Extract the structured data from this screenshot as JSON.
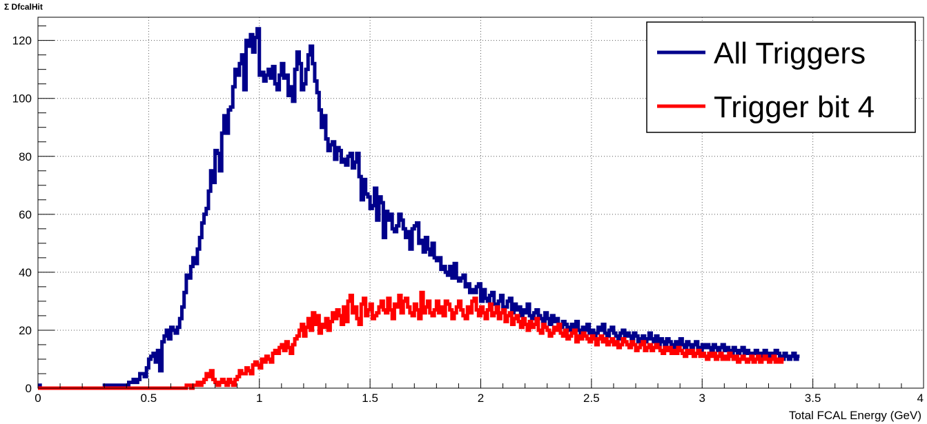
{
  "chart_data": {
    "type": "line",
    "style": "step-histogram",
    "title": "Σ DfcalHit",
    "xlabel": "Total FCAL Energy (GeV)",
    "ylabel": "",
    "xlim": [
      0,
      4
    ],
    "ylim": [
      0,
      128
    ],
    "x_ticks": [
      0,
      0.5,
      1,
      1.5,
      2,
      2.5,
      3,
      3.5,
      4
    ],
    "x_tick_labels": [
      "0",
      "0.5",
      "1",
      "1.5",
      "2",
      "2.5",
      "3",
      "3.5",
      "4"
    ],
    "y_ticks": [
      0,
      20,
      40,
      60,
      80,
      100,
      120
    ],
    "y_tick_labels": [
      "0",
      "20",
      "40",
      "60",
      "80",
      "100",
      "120"
    ],
    "grid": true,
    "legend_position": "top-right",
    "bin_width": 0.01,
    "series": [
      {
        "name": "All Triggers",
        "color": "#00008b",
        "values": [
          1,
          0,
          0,
          0,
          0,
          0,
          0,
          0,
          0,
          0,
          0,
          0,
          0,
          0,
          0,
          0,
          0,
          0,
          0,
          0,
          0,
          0,
          0,
          0,
          0,
          0,
          0,
          0,
          0,
          0,
          1,
          1,
          1,
          1,
          1,
          1,
          1,
          1,
          1,
          1,
          1,
          2,
          2,
          3,
          2,
          3,
          5,
          5,
          4,
          7,
          10,
          11,
          12,
          9,
          13,
          6,
          16,
          18,
          20,
          17,
          21,
          20,
          19,
          21,
          24,
          28,
          33,
          39,
          38,
          42,
          45,
          43,
          48,
          52,
          57,
          60,
          62,
          68,
          75,
          71,
          82,
          81,
          75,
          88,
          94,
          88,
          96,
          97,
          104,
          110,
          108,
          112,
          115,
          103,
          120,
          118,
          122,
          116,
          121,
          124,
          108,
          109,
          106,
          108,
          110,
          107,
          111,
          105,
          103,
          108,
          112,
          107,
          108,
          101,
          104,
          99,
          110,
          116,
          112,
          103,
          105,
          110,
          115,
          118,
          112,
          106,
          102,
          96,
          90,
          94,
          86,
          82,
          84,
          85,
          79,
          83,
          82,
          78,
          79,
          77,
          80,
          81,
          76,
          78,
          81,
          73,
          65,
          72,
          67,
          66,
          62,
          63,
          69,
          58,
          66,
          64,
          52,
          61,
          58,
          60,
          55,
          54,
          56,
          60,
          58,
          55,
          52,
          54,
          48,
          55,
          56,
          57,
          50,
          51,
          47,
          52,
          48,
          46,
          50,
          45,
          44,
          45,
          41,
          42,
          40,
          39,
          42,
          38,
          43,
          38,
          37,
          38,
          39,
          35,
          36,
          33,
          34,
          33,
          35,
          36,
          30,
          34,
          31,
          30,
          32,
          33,
          29,
          28,
          30,
          32,
          27,
          28,
          30,
          31,
          26,
          29,
          27,
          28,
          25,
          27,
          26,
          29,
          25,
          24,
          26,
          27,
          25,
          24,
          23,
          26,
          24,
          22,
          25,
          23,
          24,
          22,
          21,
          23,
          22,
          21,
          20,
          22,
          21,
          23,
          20,
          19,
          21,
          20,
          22,
          19,
          20,
          18,
          19,
          21,
          20,
          22,
          19,
          18,
          20,
          21,
          19,
          18,
          17,
          19,
          20,
          18,
          19,
          18,
          17,
          19,
          18,
          16,
          17,
          18,
          16,
          17,
          19,
          17,
          16,
          18,
          15,
          17,
          16,
          15,
          17,
          16,
          15,
          14,
          16,
          15,
          17,
          15,
          14,
          16,
          15,
          14,
          15,
          16,
          14,
          13,
          15,
          14,
          15,
          14,
          13,
          15,
          14,
          13,
          14,
          15,
          13,
          14,
          13,
          12,
          14,
          13,
          12,
          13,
          14,
          12,
          13,
          12,
          11,
          12,
          13,
          12,
          11,
          12,
          13,
          11,
          12,
          11,
          12,
          13,
          12,
          11,
          10,
          12,
          11,
          10,
          11,
          12,
          10,
          11
        ]
      },
      {
        "name": "Trigger bit 4",
        "color": "#ff0000",
        "values": [
          0,
          0,
          0,
          0,
          0,
          0,
          0,
          0,
          0,
          0,
          0,
          0,
          0,
          0,
          0,
          0,
          0,
          0,
          0,
          0,
          0,
          0,
          0,
          0,
          0,
          0,
          0,
          0,
          0,
          0,
          0,
          0,
          0,
          0,
          0,
          0,
          0,
          0,
          0,
          0,
          0,
          0,
          0,
          0,
          0,
          0,
          0,
          0,
          0,
          0,
          0,
          0,
          0,
          0,
          0,
          0,
          0,
          0,
          0,
          0,
          0,
          0,
          0,
          0,
          0,
          0,
          0,
          1,
          1,
          0,
          1,
          1,
          2,
          1,
          2,
          3,
          5,
          4,
          6,
          3,
          2,
          1,
          2,
          3,
          2,
          1,
          3,
          2,
          1,
          3,
          4,
          6,
          5,
          5,
          7,
          6,
          5,
          8,
          9,
          8,
          7,
          10,
          9,
          11,
          10,
          9,
          12,
          13,
          12,
          14,
          15,
          13,
          16,
          14,
          12,
          15,
          17,
          18,
          20,
          22,
          18,
          21,
          24,
          20,
          26,
          22,
          25,
          19,
          22,
          21,
          24,
          20,
          23,
          26,
          24,
          27,
          25,
          22,
          28,
          23,
          30,
          32,
          26,
          28,
          24,
          22,
          29,
          31,
          25,
          27,
          29,
          24,
          25,
          26,
          28,
          30,
          27,
          26,
          31,
          27,
          24,
          29,
          28,
          32,
          26,
          30,
          31,
          28,
          26,
          25,
          29,
          27,
          24,
          33,
          26,
          28,
          30,
          26,
          25,
          27,
          30,
          26,
          28,
          25,
          30,
          29,
          27,
          24,
          26,
          28,
          30,
          27,
          25,
          24,
          28,
          26,
          30,
          31,
          27,
          25,
          28,
          26,
          24,
          27,
          29,
          25,
          26,
          28,
          24,
          26,
          27,
          23,
          25,
          26,
          22,
          24,
          25,
          23,
          21,
          24,
          22,
          20,
          23,
          21,
          22,
          24,
          20,
          19,
          22,
          21,
          20,
          18,
          19,
          21,
          20,
          22,
          19,
          18,
          20,
          17,
          18,
          19,
          20,
          16,
          18,
          17,
          19,
          18,
          17,
          16,
          18,
          17,
          15,
          17,
          18,
          16,
          17,
          15,
          16,
          17,
          15,
          16,
          14,
          15,
          17,
          16,
          15,
          14,
          16,
          15,
          13,
          14,
          15,
          16,
          13,
          14,
          15,
          13,
          14,
          15,
          14,
          13,
          12,
          14,
          13,
          14,
          12,
          13,
          12,
          14,
          13,
          12,
          11,
          13,
          12,
          13,
          11,
          12,
          13,
          11,
          12,
          11,
          10,
          12,
          11,
          12,
          10,
          11,
          12,
          10,
          11,
          10,
          12,
          11,
          10,
          11,
          9,
          10,
          11,
          10,
          9,
          10,
          11,
          9,
          10,
          11,
          9,
          10,
          11,
          10,
          9,
          10,
          11,
          9,
          10,
          9,
          10
        ]
      }
    ]
  }
}
